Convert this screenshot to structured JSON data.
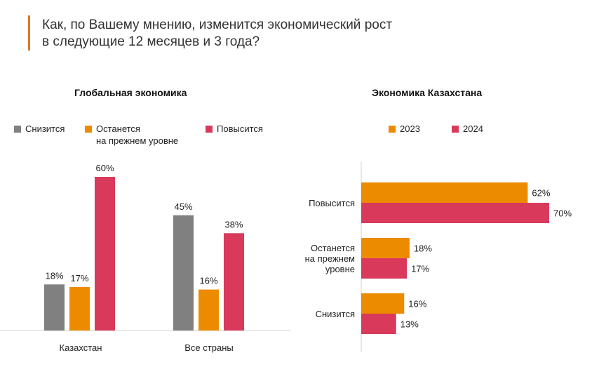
{
  "header": {
    "title_line1": "Как, по Вашему мнению, изменится экономический рост",
    "title_line2": "в следующие 12 месяцев и 3 года?"
  },
  "colors": {
    "decrease": "#808080",
    "same": "#ed8b00",
    "increase": "#d9395b",
    "y2023": "#ed8b00",
    "y2024": "#d9395b",
    "accent": "#d9782b"
  },
  "chart_data": [
    {
      "type": "bar",
      "title": "Глобальная экономика",
      "categories": [
        "Казахстан",
        "Все страны"
      ],
      "series": [
        {
          "name": "Снизится",
          "values": [
            18,
            45
          ]
        },
        {
          "name": "Останется на прежнем уровне",
          "values": [
            17,
            16
          ]
        },
        {
          "name": "Повысится",
          "values": [
            60,
            38
          ]
        }
      ],
      "legend_labels": [
        "Снизится",
        "Останется",
        "на прежнем уровне",
        "Повысится"
      ],
      "ylim": [
        0,
        60
      ],
      "grid": false,
      "legend_position": "top",
      "unit": "%"
    },
    {
      "type": "bar",
      "orientation": "horizontal",
      "title": "Экономика Казахстана",
      "categories": [
        "Повысится",
        "Останется на прежнем уровне",
        "Снизится"
      ],
      "category_lines": [
        [
          "Повысится"
        ],
        [
          "Останется",
          "на прежнем",
          "уровне"
        ],
        [
          "Снизится"
        ]
      ],
      "series": [
        {
          "name": "2023",
          "values": [
            62,
            18,
            16
          ]
        },
        {
          "name": "2024",
          "values": [
            70,
            17,
            13
          ]
        }
      ],
      "xlim": [
        0,
        70
      ],
      "grid": false,
      "legend_position": "top",
      "unit": "%"
    }
  ]
}
